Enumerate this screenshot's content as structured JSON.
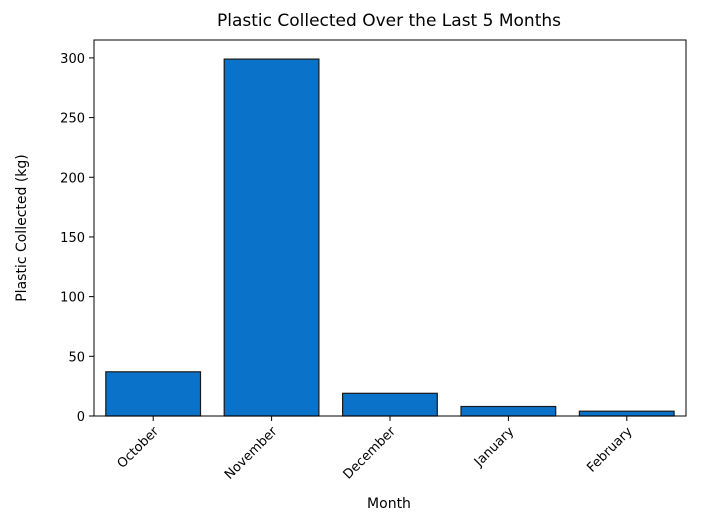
{
  "chart_data": {
    "type": "bar",
    "title": "Plastic Collected Over the Last 5 Months",
    "xlabel": "Month",
    "ylabel": "Plastic Collected (kg)",
    "categories": [
      "October",
      "November",
      "December",
      "January",
      "February"
    ],
    "values": [
      37,
      299,
      19,
      8,
      4
    ],
    "ylim": [
      0,
      315
    ],
    "yticks": [
      0,
      50,
      100,
      150,
      200,
      250,
      300
    ],
    "bar_color": "#0a72c9",
    "bar_edge_color": "#1a1a1a",
    "grid": false,
    "legend": "none"
  }
}
